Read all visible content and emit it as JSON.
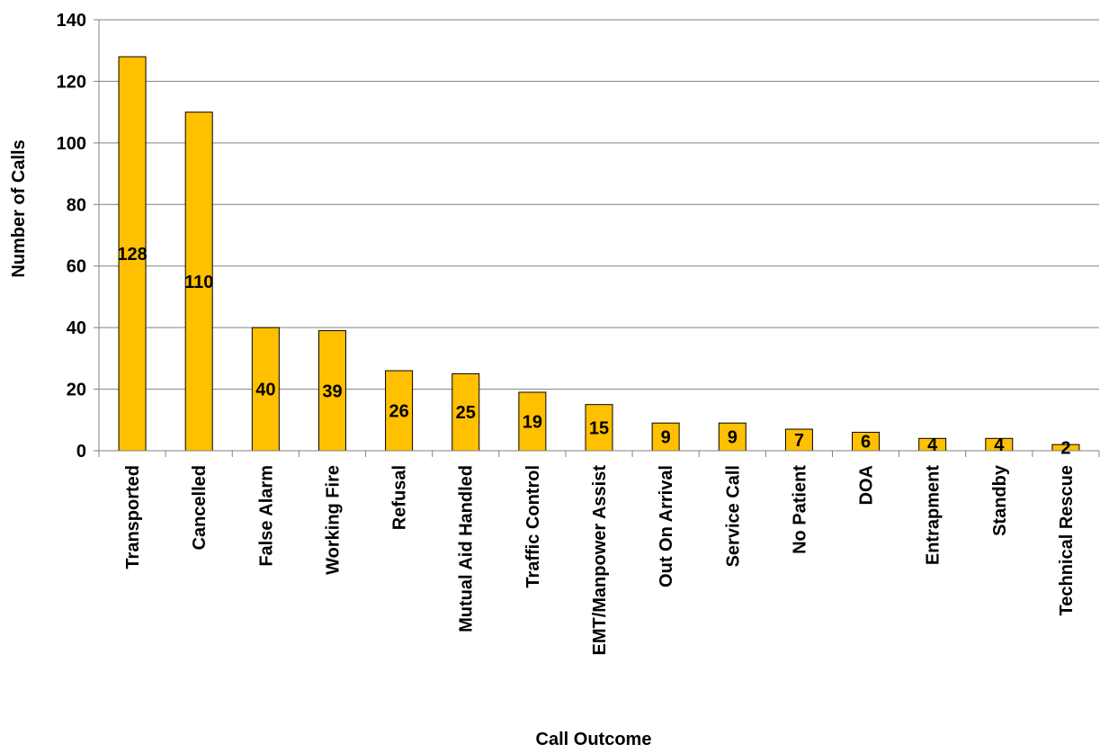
{
  "chart_data": {
    "type": "bar",
    "title": "",
    "xlabel": "Call Outcome",
    "ylabel": "Number of Calls",
    "ylim": [
      0,
      140
    ],
    "yticks": [
      0,
      20,
      40,
      60,
      80,
      100,
      120,
      140
    ],
    "grid": true,
    "legend": "none",
    "categories": [
      "Transported",
      "Cancelled",
      "False Alarm",
      "Working Fire",
      "Refusal",
      "Mutual Aid Handled",
      "Traffic Control",
      "EMT/Manpower Assist",
      "Out On Arrival",
      "Service Call",
      "No Patient",
      "DOA",
      "Entrapment",
      "Standby",
      "Technical Rescue"
    ],
    "values": [
      128,
      110,
      40,
      39,
      26,
      25,
      19,
      15,
      9,
      9,
      7,
      6,
      4,
      4,
      2
    ],
    "colors": {
      "bar_fill": "#FFC000",
      "bar_stroke": "#000000",
      "grid": "#808080",
      "axis": "#808080"
    }
  }
}
